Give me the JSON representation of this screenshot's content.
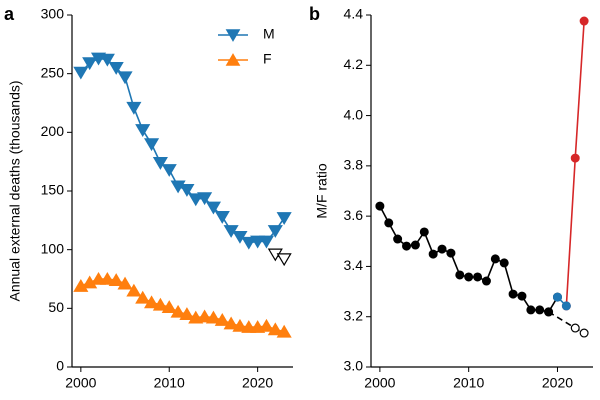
{
  "chart_data": [
    {
      "type": "line",
      "panel_label": "a",
      "ylabel": "Annual external deaths (thousands)",
      "xlim": [
        1999,
        2024
      ],
      "xticks": [
        2000,
        2010,
        2020
      ],
      "ylim": [
        0,
        300
      ],
      "yticks": [
        0,
        50,
        100,
        150,
        200,
        250,
        300
      ],
      "legend": "upper right",
      "series": [
        {
          "name": "M",
          "color": "#1f77b4",
          "marker": "v",
          "fill": "#1f77b4",
          "dash": false,
          "x": [
            2000,
            2001,
            2002,
            2003,
            2004,
            2005,
            2006,
            2007,
            2008,
            2009,
            2010,
            2011,
            2012,
            2013,
            2014,
            2015,
            2016,
            2017,
            2018,
            2019,
            2020,
            2021,
            2022,
            2023
          ],
          "values": [
            251,
            259,
            263,
            262,
            255,
            247,
            221,
            202,
            190,
            174,
            168,
            154,
            151,
            143,
            144,
            136,
            128,
            116,
            111,
            106,
            107,
            107,
            116,
            127
          ]
        },
        {
          "name": "F",
          "color": "#ff7f0e",
          "marker": "^",
          "fill": "#ff7f0e",
          "dash": false,
          "x": [
            2000,
            2001,
            2002,
            2003,
            2004,
            2005,
            2006,
            2007,
            2008,
            2009,
            2010,
            2011,
            2012,
            2013,
            2014,
            2015,
            2016,
            2017,
            2018,
            2019,
            2020,
            2021,
            2022,
            2023
          ],
          "values": [
            69,
            72,
            75,
            75,
            74,
            71,
            65,
            59,
            55,
            53,
            51,
            47,
            45,
            42,
            43,
            42,
            40,
            37,
            35,
            34,
            34,
            35,
            32,
            30
          ]
        },
        {
          "color": "#000000",
          "marker": "v",
          "fill": "none",
          "dash": false,
          "x": [
            2022,
            2023
          ],
          "values": [
            96,
            92
          ]
        }
      ]
    },
    {
      "type": "line",
      "panel_label": "b",
      "ylabel": "M/F ratio",
      "xlim": [
        1999,
        2024
      ],
      "xticks": [
        2000,
        2010,
        2020
      ],
      "ylim": [
        3,
        4.4
      ],
      "yticks": [
        {
          "value": 3,
          "label": "3.0"
        },
        3.2,
        3.4,
        3.6,
        3.8,
        {
          "value": 4,
          "label": "4.0"
        },
        4.2,
        4.4
      ],
      "series": [
        {
          "color": "#000000",
          "marker": "o",
          "fill": "none",
          "dash": true,
          "x": [
            2019,
            2022,
            2023
          ],
          "values": [
            3.219,
            3.155,
            3.135
          ]
        },
        {
          "color": "#d62728",
          "marker": "o",
          "fill": "#d62728",
          "dash": false,
          "x": [
            2021,
            2022,
            2023
          ],
          "values": [
            3.243,
            3.831,
            4.376
          ]
        },
        {
          "color": "#000000",
          "marker": "o",
          "fill": "#000000",
          "dash": false,
          "x": [
            2000,
            2001,
            2002,
            2003,
            2004,
            2005,
            2006,
            2007,
            2008,
            2009,
            2010,
            2011,
            2012,
            2013,
            2014,
            2015,
            2016,
            2017,
            2018,
            2019,
            2020
          ],
          "values": [
            3.64,
            3.573,
            3.509,
            3.481,
            3.485,
            3.537,
            3.449,
            3.469,
            3.453,
            3.366,
            3.358,
            3.358,
            3.342,
            3.43,
            3.414,
            3.29,
            3.282,
            3.227,
            3.227,
            3.219,
            3.278
          ]
        },
        {
          "color": "#1f77b4",
          "marker": "o",
          "fill": "#1f77b4",
          "dash": false,
          "x": [
            2020,
            2021
          ],
          "values": [
            3.278,
            3.243
          ]
        }
      ]
    }
  ]
}
